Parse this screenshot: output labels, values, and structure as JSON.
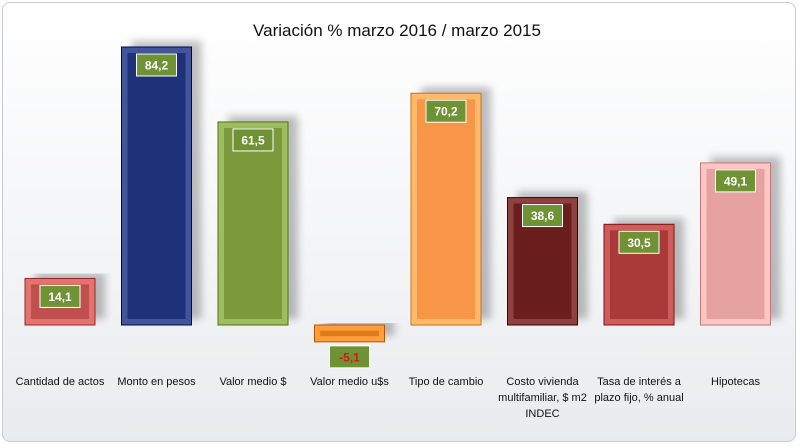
{
  "chart_data": {
    "type": "bar",
    "title": "Variación % marzo 2016 / marzo 2015",
    "categories": [
      "Cantidad de actos",
      "Monto en pesos",
      "Valor medio $",
      "Valor medio u$s",
      "Tipo de cambio",
      "Costo vivienda multifamiliar, $ m2 INDEC",
      "Tasa de interés a plazo fijo, % anual",
      "Hipotecas"
    ],
    "category_lines": [
      [
        "Cantidad de actos"
      ],
      [
        "Monto en pesos"
      ],
      [
        "Valor medio $"
      ],
      [
        "Valor medio u$s"
      ],
      [
        "Tipo de cambio"
      ],
      [
        "Costo vivienda",
        "multifamiliar, $ m2",
        "INDEC"
      ],
      [
        "Tasa de interés a",
        "plazo fijo, % anual"
      ],
      [
        "Hipotecas"
      ]
    ],
    "values": [
      14.1,
      84.2,
      61.5,
      -5.1,
      70.2,
      38.6,
      30.5,
      49.1
    ],
    "data_labels": [
      "14,1",
      "84,2",
      "61,5",
      "-5,1",
      "70,2",
      "38,6",
      "30,5",
      "49,1"
    ],
    "colors": [
      "#c0504d",
      "#1f3178",
      "#7a9a3c",
      "#e07b1a",
      "#f79646",
      "#6b1f1c",
      "#a93a38",
      "#e6a2a0"
    ],
    "label_box_color": "#6f9234",
    "ylim": [
      -6,
      90
    ],
    "grid": false,
    "legend": "none"
  }
}
